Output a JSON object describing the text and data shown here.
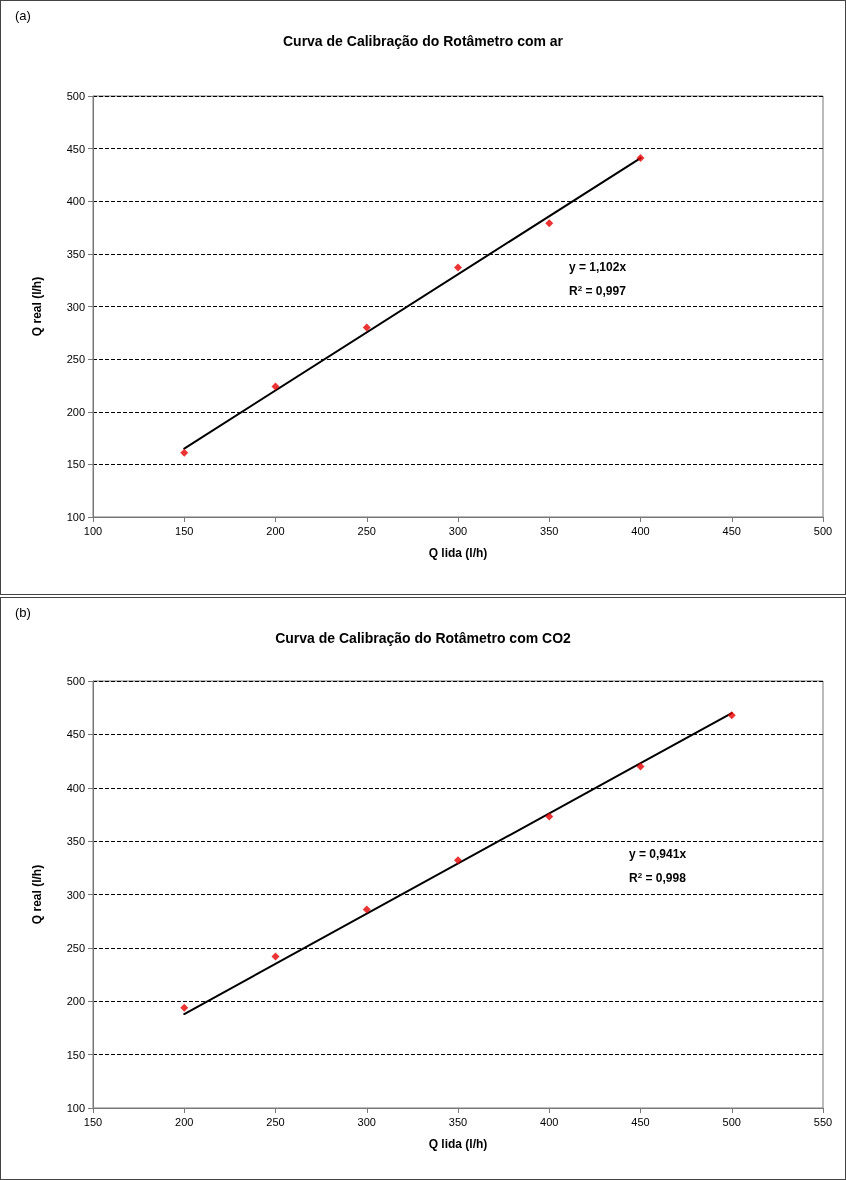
{
  "chart_data": [
    {
      "type": "scatter",
      "title": "Curva de Calibração do Rotâmetro com ar",
      "xlabel": "Q lida (l/h)",
      "ylabel": "Q real (l/h)",
      "annotations": [
        "(a)",
        "y = 1,102x",
        "R$^{2}$ = 0,997"
      ],
      "x": [
        150,
        200,
        250,
        300,
        350,
        400
      ],
      "series": [
        {
          "color": "#e60000",
          "marker": "diamond",
          "values": [
            161,
            224,
            280,
            337,
            379,
            441
          ]
        },
        {
          "type": "line",
          "color": "#000000",
          "marker": "none",
          "x": [
            150,
            400
          ],
          "values": [
            165,
            441
          ]
        }
      ],
      "xlim": [
        100,
        500
      ],
      "xticks": [
        100,
        150,
        200,
        250,
        300,
        350,
        400,
        450,
        500
      ],
      "ylim": [
        100,
        500
      ],
      "yticks": [
        100,
        150,
        200,
        250,
        300,
        350,
        400,
        450,
        500
      ],
      "grid": "y"
    },
    {
      "type": "scatter",
      "title": "Curva de Calibração do Rotâmetro com CO2",
      "xlabel": "Q lida (l/h)",
      "ylabel": "Q real (l/h)",
      "annotations": [
        "(b)",
        "y = 0,941x",
        "R$^{2}$ = 0,998"
      ],
      "x": [
        200,
        250,
        300,
        350,
        400,
        450,
        500
      ],
      "series": [
        {
          "color": "#e60000",
          "marker": "diamond",
          "values": [
            194,
            242,
            286,
            332,
            373,
            420,
            468
          ]
        },
        {
          "type": "line",
          "color": "#000000",
          "marker": "none",
          "x": [
            200,
            500
          ],
          "values": [
            188,
            470
          ]
        }
      ],
      "xlim": [
        150,
        550
      ],
      "xticks": [
        150,
        200,
        250,
        300,
        350,
        400,
        450,
        500,
        550
      ],
      "ylim": [
        100,
        500
      ],
      "yticks": [
        100,
        150,
        200,
        250,
        300,
        350,
        400,
        450,
        500
      ],
      "grid": "y"
    }
  ]
}
